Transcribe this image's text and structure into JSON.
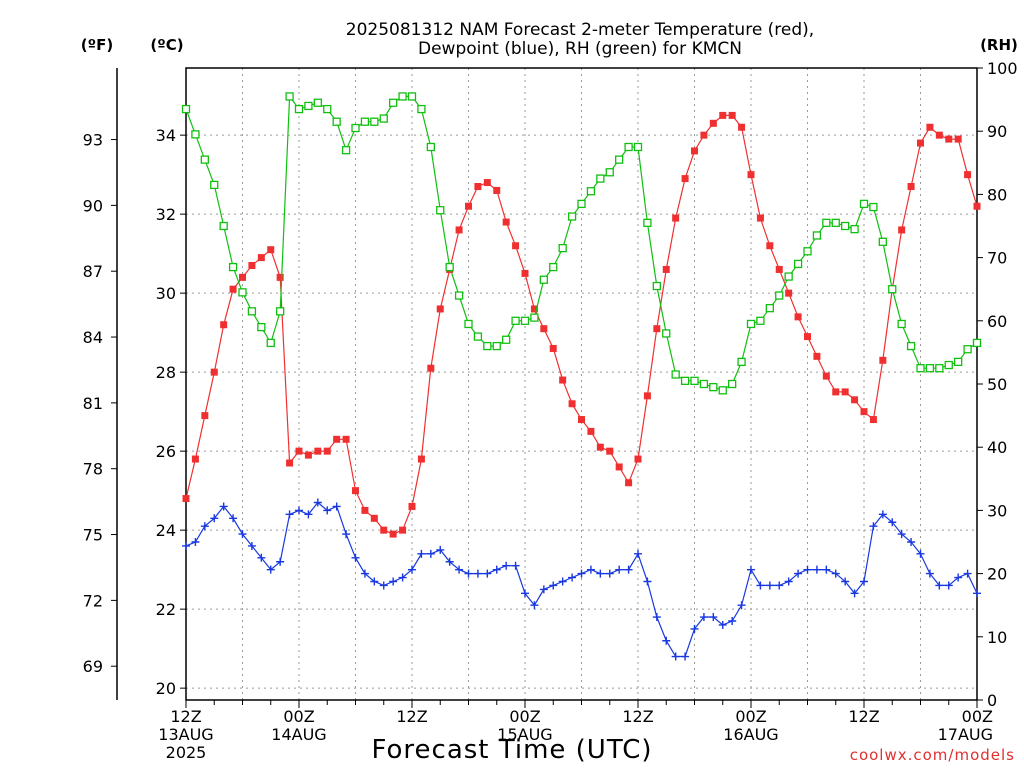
{
  "chart_data": {
    "type": "line",
    "title_lines": [
      "2025081312 NAM Forecast 2-meter Temperature (red),",
      "Dewpoint (blue), RH (green) for KMCN"
    ],
    "xlabel": "Forecast Time (UTC)",
    "credit": "coolwx.com/models",
    "units": {
      "fahrenheit": "(ºF)",
      "celsius": "(ºC)",
      "rh": "(RH)"
    },
    "x_range_hours": [
      0,
      84
    ],
    "x_ticks": [
      {
        "hour": 0,
        "lines": [
          "12Z",
          "13AUG",
          "2025"
        ]
      },
      {
        "hour": 12,
        "lines": [
          "00Z",
          "14AUG"
        ]
      },
      {
        "hour": 24,
        "lines": [
          "12Z"
        ]
      },
      {
        "hour": 36,
        "lines": [
          "00Z",
          "15AUG"
        ]
      },
      {
        "hour": 48,
        "lines": [
          "12Z"
        ]
      },
      {
        "hour": 60,
        "lines": [
          "00Z",
          "16AUG"
        ]
      },
      {
        "hour": 72,
        "lines": [
          "12Z"
        ]
      },
      {
        "hour": 84,
        "lines": [
          "00Z",
          "17AUG"
        ]
      }
    ],
    "y_celsius": {
      "range": [
        19.7,
        35.7
      ],
      "ticks": [
        20,
        22,
        24,
        26,
        28,
        30,
        32,
        34
      ]
    },
    "y_fahrenheit": {
      "ticks": [
        69,
        72,
        75,
        78,
        81,
        84,
        87,
        90,
        93
      ]
    },
    "y_rh": {
      "range": [
        0,
        100
      ],
      "ticks": [
        0,
        10,
        20,
        30,
        40,
        50,
        60,
        70,
        80,
        90,
        100
      ]
    },
    "grid": true,
    "series": [
      {
        "axis": "celsius",
        "color": "#f03030",
        "marker": "filled-square",
        "values": [
          24.8,
          25.8,
          26.9,
          28.0,
          29.2,
          30.1,
          30.4,
          30.7,
          30.9,
          31.1,
          30.4,
          25.7,
          26.0,
          25.9,
          26.0,
          26.0,
          26.3,
          26.3,
          25.0,
          24.5,
          24.3,
          24.0,
          23.9,
          24.0,
          24.6,
          25.8,
          28.1,
          29.6,
          30.6,
          31.6,
          32.2,
          32.7,
          32.8,
          32.6,
          31.8,
          31.2,
          30.5,
          29.6,
          29.1,
          28.6,
          27.8,
          27.2,
          26.8,
          26.5,
          26.1,
          26.0,
          25.6,
          25.2,
          25.8,
          27.4,
          29.1,
          30.6,
          31.9,
          32.9,
          33.6,
          34.0,
          34.3,
          34.5,
          34.5,
          34.2,
          33.0,
          31.9,
          31.2,
          30.6,
          30.0,
          29.4,
          28.9,
          28.4,
          27.9,
          27.5,
          27.5,
          27.3,
          27.0,
          26.8,
          28.3,
          30.1,
          31.6,
          32.7,
          33.8,
          34.2,
          34.0,
          33.9,
          33.9,
          33.0,
          32.2
        ]
      },
      {
        "axis": "celsius",
        "color": "#1838e0",
        "marker": "plus",
        "values": [
          23.6,
          23.7,
          24.1,
          24.3,
          24.6,
          24.3,
          23.9,
          23.6,
          23.3,
          23.0,
          23.2,
          24.4,
          24.5,
          24.4,
          24.7,
          24.5,
          24.6,
          23.9,
          23.3,
          22.9,
          22.7,
          22.6,
          22.7,
          22.8,
          23.0,
          23.4,
          23.4,
          23.5,
          23.2,
          23.0,
          22.9,
          22.9,
          22.9,
          23.0,
          23.1,
          23.1,
          22.4,
          22.1,
          22.5,
          22.6,
          22.7,
          22.8,
          22.9,
          23.0,
          22.9,
          22.9,
          23.0,
          23.0,
          23.4,
          22.7,
          21.8,
          21.2,
          20.8,
          20.8,
          21.5,
          21.8,
          21.8,
          21.6,
          21.7,
          22.1,
          23.0,
          22.6,
          22.6,
          22.6,
          22.7,
          22.9,
          23.0,
          23.0,
          23.0,
          22.9,
          22.7,
          22.4,
          22.7,
          24.1,
          24.4,
          24.2,
          23.9,
          23.7,
          23.4,
          22.9,
          22.6,
          22.6,
          22.8,
          22.9,
          22.4
        ]
      },
      {
        "axis": "rh",
        "color": "#10c010",
        "marker": "open-square",
        "values": [
          93.5,
          89.5,
          85.5,
          81.5,
          75.0,
          68.5,
          64.5,
          61.5,
          59.0,
          56.5,
          61.5,
          95.5,
          93.5,
          94.0,
          94.5,
          93.5,
          91.5,
          87.0,
          90.5,
          91.5,
          91.5,
          92.0,
          94.5,
          95.5,
          95.5,
          93.5,
          87.5,
          77.5,
          68.5,
          64.0,
          59.5,
          57.5,
          56.0,
          56.0,
          57.0,
          60.0,
          60.0,
          60.5,
          66.5,
          68.5,
          71.5,
          76.5,
          78.5,
          80.5,
          82.5,
          83.5,
          85.5,
          87.5,
          87.5,
          75.5,
          65.5,
          58.0,
          51.5,
          50.5,
          50.5,
          50.0,
          49.5,
          49.0,
          50.0,
          53.5,
          59.5,
          60.0,
          62.0,
          64.0,
          67.0,
          69.0,
          71.0,
          73.5,
          75.5,
          75.5,
          75.0,
          74.5,
          78.5,
          78.0,
          72.5,
          65.0,
          59.5,
          56.0,
          52.5,
          52.5,
          52.5,
          53.0,
          53.5,
          55.5,
          56.5
        ]
      }
    ]
  }
}
